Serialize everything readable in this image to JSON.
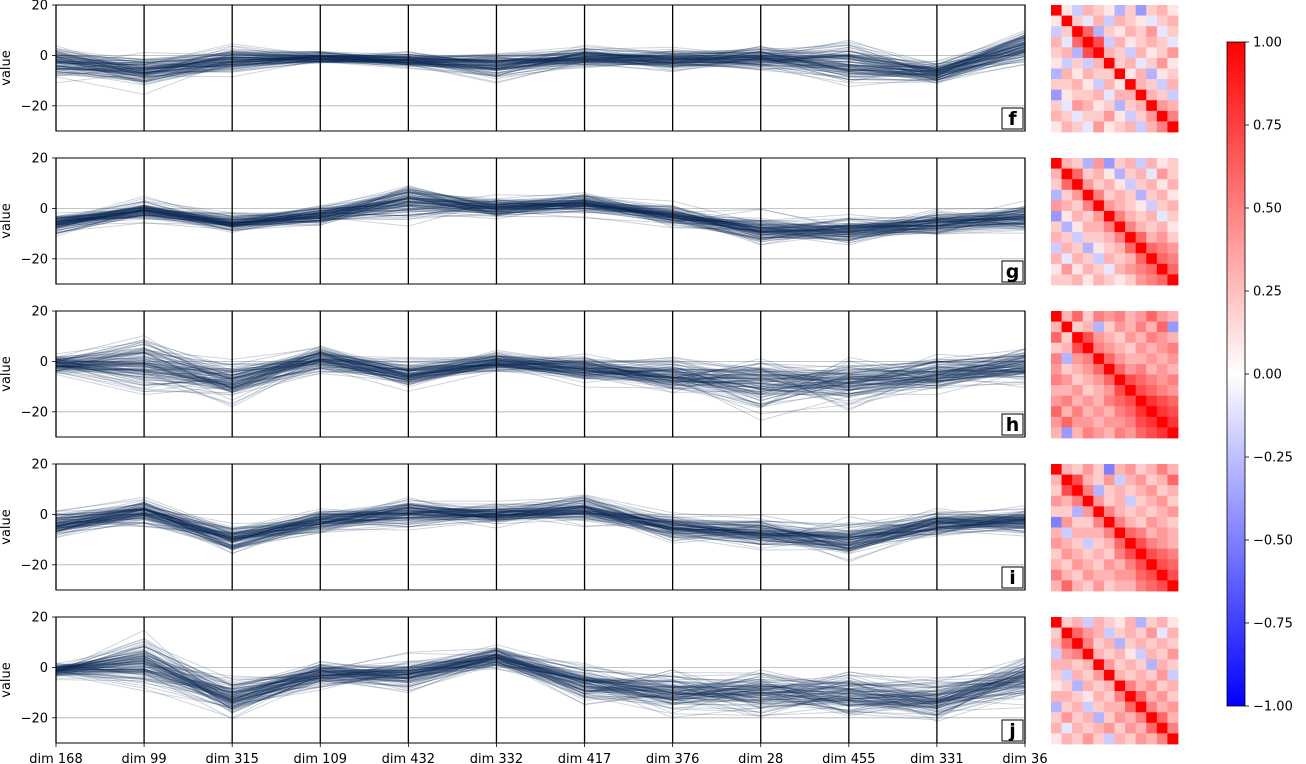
{
  "chart_data": {
    "type": "line",
    "subtype": "parallel-coordinates with correlation-matrix heatmaps",
    "dimensions": [
      "dim 168",
      "dim 99",
      "dim 315",
      "dim 109",
      "dim 432",
      "dim 332",
      "dim 417",
      "dim 376",
      "dim 28",
      "dim 455",
      "dim 331",
      "dim 36"
    ],
    "ylabel": "value",
    "ylim": [
      -30,
      20
    ],
    "yticks": [
      "20",
      "0",
      "−20"
    ],
    "grid": "horizontal",
    "line_color": "#0b2a55",
    "panels": [
      {
        "label": "f",
        "mean": [
          -3,
          -6,
          -2,
          -1,
          -2,
          -4,
          -1,
          -2,
          -1,
          -3,
          -7,
          3
        ],
        "spread": [
          4,
          4,
          4,
          2,
          2,
          4,
          3,
          3,
          3,
          6,
          3,
          5
        ]
      },
      {
        "label": "g",
        "mean": [
          -6,
          -1,
          -6,
          -3,
          3,
          0,
          2,
          -3,
          -9,
          -9,
          -6,
          -4
        ],
        "spread": [
          3,
          3,
          3,
          3,
          5,
          3,
          3,
          3,
          4,
          4,
          4,
          4
        ]
      },
      {
        "label": "h",
        "mean": [
          -1,
          -1,
          -8,
          1,
          -5,
          0,
          -3,
          -6,
          -9,
          -8,
          -5,
          -2
        ],
        "spread": [
          3,
          8,
          5,
          4,
          4,
          3,
          4,
          5,
          8,
          7,
          5,
          6
        ]
      },
      {
        "label": "i",
        "mean": [
          -4,
          1,
          -10,
          -3,
          1,
          0,
          2,
          -5,
          -7,
          -10,
          -4,
          -3
        ],
        "spread": [
          4,
          4,
          4,
          3,
          5,
          3,
          4,
          4,
          4,
          5,
          4,
          4
        ]
      },
      {
        "label": "j",
        "mean": [
          -1,
          2,
          -12,
          -3,
          -3,
          4,
          -6,
          -10,
          -10,
          -11,
          -13,
          -4
        ],
        "spread": [
          2,
          8,
          5,
          4,
          5,
          3,
          5,
          6,
          7,
          7,
          6,
          6
        ]
      }
    ],
    "heatmap": {
      "size": 12,
      "matrices": {
        "f": [
          [
            1,
            0.1,
            -0.2,
            0.3,
            0.2,
            0.1,
            -0.3,
            0.2,
            -0.4,
            0.2,
            0.3,
            0.1
          ],
          [
            0.1,
            1,
            0.2,
            -0.1,
            0.3,
            -0.2,
            0.3,
            0.2,
            0.1,
            -0.1,
            0.2,
            0.3
          ],
          [
            -0.2,
            0.2,
            1,
            0.6,
            -0.3,
            0.2,
            0.1,
            0.3,
            0.2,
            0.4,
            -0.1,
            0.2
          ],
          [
            0.3,
            -0.1,
            0.6,
            1,
            0.7,
            -0.2,
            0.3,
            0.1,
            0.2,
            0.3,
            0.2,
            -0.1
          ],
          [
            0.2,
            0.3,
            -0.3,
            0.7,
            1,
            0.3,
            0.2,
            -0.2,
            0.3,
            0.1,
            0.2,
            0.4
          ],
          [
            0.1,
            -0.2,
            0.2,
            -0.2,
            0.3,
            1,
            0.2,
            0.3,
            -0.1,
            0.2,
            0.4,
            0.1
          ],
          [
            -0.3,
            0.3,
            0.1,
            0.3,
            0.2,
            0.2,
            1,
            0.1,
            0.3,
            -0.3,
            0.1,
            0.2
          ],
          [
            0.2,
            0.2,
            0.3,
            0.1,
            -0.2,
            0.3,
            0.1,
            1,
            0.3,
            0.2,
            -0.2,
            0.3
          ],
          [
            -0.4,
            0.1,
            0.2,
            0.2,
            0.3,
            -0.1,
            0.3,
            0.3,
            1,
            0.3,
            0.2,
            -0.2
          ],
          [
            0.2,
            -0.1,
            0.4,
            0.3,
            0.1,
            0.2,
            -0.3,
            0.2,
            0.3,
            1,
            0.4,
            0.3
          ],
          [
            0.3,
            0.2,
            -0.1,
            0.2,
            0.2,
            0.4,
            0.1,
            -0.2,
            0.2,
            0.4,
            1,
            0.5
          ],
          [
            0.1,
            0.3,
            0.2,
            -0.1,
            0.4,
            0.1,
            0.2,
            0.3,
            -0.2,
            0.3,
            0.5,
            1
          ]
        ],
        "g": [
          [
            1,
            0.3,
            0.2,
            -0.3,
            0.4,
            -0.4,
            0.2,
            0.3,
            -0.2,
            0.3,
            0.1,
            0.2
          ],
          [
            0.3,
            1,
            0.6,
            0.2,
            0.3,
            0.1,
            -0.3,
            0.2,
            0.3,
            -0.1,
            0.4,
            0.2
          ],
          [
            0.2,
            0.6,
            1,
            0.4,
            0.2,
            0.3,
            0.1,
            -0.2,
            0.2,
            0.3,
            0.1,
            0.3
          ],
          [
            -0.3,
            0.2,
            0.4,
            1,
            0.5,
            0.2,
            0.3,
            0.2,
            -0.3,
            0.2,
            0.3,
            0.1
          ],
          [
            0.4,
            0.3,
            0.2,
            0.5,
            1,
            0.4,
            0.3,
            0.2,
            0.1,
            -0.2,
            0.2,
            0.3
          ],
          [
            -0.4,
            0.1,
            0.3,
            0.2,
            0.4,
            1,
            0.5,
            0.3,
            0.2,
            0.3,
            -0.1,
            0.2
          ],
          [
            0.2,
            -0.3,
            0.1,
            0.3,
            0.3,
            0.5,
            1,
            0.5,
            0.3,
            0.2,
            0.3,
            0.1
          ],
          [
            0.3,
            0.2,
            -0.2,
            0.2,
            0.2,
            0.3,
            0.5,
            1,
            0.6,
            0.3,
            0.4,
            0.2
          ],
          [
            -0.2,
            0.3,
            0.2,
            -0.3,
            0.1,
            0.2,
            0.3,
            0.6,
            1,
            0.6,
            0.5,
            0.4
          ],
          [
            0.3,
            -0.1,
            0.3,
            0.2,
            -0.2,
            0.3,
            0.2,
            0.3,
            0.6,
            1,
            0.6,
            0.5
          ],
          [
            0.1,
            0.4,
            0.1,
            0.3,
            0.2,
            -0.1,
            0.3,
            0.4,
            0.5,
            0.6,
            1,
            0.6
          ],
          [
            0.2,
            0.2,
            0.3,
            0.1,
            0.3,
            0.2,
            0.1,
            0.2,
            0.4,
            0.5,
            0.6,
            1
          ]
        ],
        "h": [
          [
            1,
            0.3,
            0.6,
            0.2,
            0.5,
            0.4,
            0.5,
            0.3,
            0.4,
            0.6,
            0.4,
            0.3
          ],
          [
            0.3,
            1,
            0.2,
            0.3,
            -0.3,
            0.2,
            0.4,
            0.3,
            0.5,
            0.3,
            0.6,
            -0.4
          ],
          [
            0.6,
            0.2,
            1,
            0.7,
            0.4,
            0.3,
            0.2,
            0.4,
            0.3,
            0.5,
            0.4,
            0.3
          ],
          [
            0.2,
            0.3,
            0.7,
            1,
            0.5,
            0.4,
            0.3,
            0.2,
            0.4,
            0.3,
            0.4,
            0.5
          ],
          [
            0.5,
            -0.3,
            0.4,
            0.5,
            1,
            0.6,
            0.4,
            0.3,
            0.3,
            0.4,
            0.3,
            0.4
          ],
          [
            0.4,
            0.2,
            0.3,
            0.4,
            0.6,
            1,
            0.6,
            0.4,
            0.5,
            0.3,
            0.4,
            0.3
          ],
          [
            0.5,
            0.4,
            0.2,
            0.3,
            0.4,
            0.6,
            1,
            0.7,
            0.6,
            0.5,
            0.4,
            0.5
          ],
          [
            0.3,
            0.3,
            0.4,
            0.2,
            0.3,
            0.4,
            0.7,
            1,
            0.7,
            0.6,
            0.5,
            0.4
          ],
          [
            0.4,
            0.5,
            0.3,
            0.4,
            0.3,
            0.5,
            0.6,
            0.7,
            1,
            0.8,
            0.7,
            0.6
          ],
          [
            0.6,
            0.3,
            0.5,
            0.3,
            0.4,
            0.3,
            0.5,
            0.6,
            0.8,
            1,
            0.8,
            0.7
          ],
          [
            0.4,
            0.6,
            0.4,
            0.4,
            0.3,
            0.4,
            0.4,
            0.5,
            0.7,
            0.8,
            1,
            0.8
          ],
          [
            0.3,
            -0.4,
            0.3,
            0.5,
            0.4,
            0.3,
            0.5,
            0.4,
            0.6,
            0.7,
            0.8,
            1
          ]
        ],
        "i": [
          [
            1,
            0.3,
            0.2,
            0.4,
            0.2,
            -0.5,
            0.3,
            0.4,
            0.2,
            0.3,
            0.5,
            0.3
          ],
          [
            0.3,
            1,
            0.7,
            0.3,
            0.2,
            0.4,
            -0.2,
            0.3,
            0.4,
            0.2,
            0.3,
            0.6
          ],
          [
            0.2,
            0.7,
            1,
            0.5,
            -0.3,
            0.2,
            0.3,
            0.2,
            0.3,
            0.4,
            0.2,
            0.3
          ],
          [
            0.4,
            0.3,
            0.5,
            1,
            0.4,
            0.2,
            0.3,
            -0.2,
            0.2,
            0.3,
            0.4,
            0.2
          ],
          [
            0.2,
            0.2,
            -0.3,
            0.4,
            1,
            0.5,
            0.3,
            0.2,
            0.3,
            0.2,
            0.3,
            0.4
          ],
          [
            -0.5,
            0.4,
            0.2,
            0.2,
            0.5,
            1,
            0.5,
            0.3,
            0.2,
            0.4,
            0.3,
            0.2
          ],
          [
            0.3,
            -0.2,
            0.3,
            0.3,
            0.3,
            0.5,
            1,
            0.6,
            0.5,
            0.3,
            0.4,
            0.3
          ],
          [
            0.4,
            0.3,
            0.2,
            -0.2,
            0.2,
            0.3,
            0.6,
            1,
            0.7,
            0.5,
            0.4,
            0.3
          ],
          [
            0.2,
            0.4,
            0.3,
            0.2,
            0.3,
            0.2,
            0.5,
            0.7,
            1,
            0.7,
            0.6,
            0.5
          ],
          [
            0.3,
            0.2,
            0.4,
            0.3,
            0.2,
            0.4,
            0.3,
            0.5,
            0.7,
            1,
            0.7,
            0.6
          ],
          [
            0.5,
            0.3,
            0.2,
            0.4,
            0.3,
            0.3,
            0.4,
            0.4,
            0.6,
            0.7,
            1,
            0.7
          ],
          [
            0.3,
            0.6,
            0.3,
            0.2,
            0.4,
            0.2,
            0.3,
            0.3,
            0.5,
            0.6,
            0.7,
            1
          ]
        ],
        "j": [
          [
            1,
            0.2,
            0.3,
            -0.2,
            0.3,
            0.2,
            0.1,
            0.3,
            -0.3,
            0.2,
            0.3,
            0.1
          ],
          [
            0.2,
            1,
            0.6,
            0.4,
            0.3,
            -0.2,
            0.2,
            0.3,
            0.2,
            0.4,
            -0.1,
            0.3
          ],
          [
            0.3,
            0.6,
            1,
            0.5,
            0.2,
            0.3,
            -0.3,
            0.2,
            0.3,
            0.2,
            0.3,
            0.2
          ],
          [
            -0.2,
            0.4,
            0.5,
            1,
            0.3,
            0.2,
            0.3,
            0.1,
            -0.2,
            0.3,
            0.2,
            0.4
          ],
          [
            0.3,
            0.3,
            0.2,
            0.3,
            1,
            0.4,
            0.2,
            0.3,
            0.2,
            -0.3,
            0.3,
            0.2
          ],
          [
            0.2,
            -0.2,
            0.3,
            0.2,
            0.4,
            1,
            0.3,
            0.2,
            0.3,
            0.2,
            0.4,
            -0.2
          ],
          [
            0.1,
            0.2,
            -0.3,
            0.3,
            0.2,
            0.3,
            1,
            0.5,
            0.3,
            0.4,
            0.2,
            0.3
          ],
          [
            0.3,
            0.3,
            0.2,
            0.1,
            0.3,
            0.2,
            0.5,
            1,
            0.6,
            0.3,
            0.4,
            0.2
          ],
          [
            -0.3,
            0.2,
            0.3,
            -0.2,
            0.2,
            0.3,
            0.3,
            0.6,
            1,
            0.5,
            0.3,
            0.4
          ],
          [
            0.2,
            0.4,
            0.2,
            0.3,
            -0.3,
            0.2,
            0.4,
            0.3,
            0.5,
            1,
            0.6,
            0.3
          ],
          [
            0.3,
            -0.1,
            0.3,
            0.2,
            0.3,
            0.4,
            0.2,
            0.4,
            0.3,
            0.6,
            1,
            0.5
          ],
          [
            0.1,
            0.3,
            0.2,
            0.4,
            0.2,
            -0.2,
            0.3,
            0.2,
            0.4,
            0.3,
            0.5,
            1
          ]
        ]
      }
    },
    "colorbar": {
      "range": [
        -1,
        1
      ],
      "ticks": [
        "1.00",
        "0.75",
        "0.50",
        "0.25",
        "0.00",
        "−0.25",
        "−0.50",
        "−0.75",
        "−1.00"
      ],
      "colormap": "bwr"
    }
  }
}
